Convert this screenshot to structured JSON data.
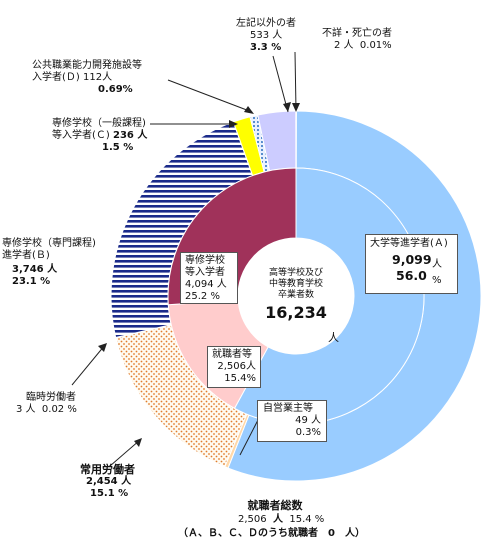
{
  "chart_data": {
    "type": "pie",
    "total_label": "高等学校及び中等教育学校卒業者数",
    "total_lines": [
      "高等学校及び",
      "中等教育学校",
      "卒業者数"
    ],
    "total_value": "16,234",
    "total_unit": "人",
    "outer": [
      {
        "label": "大学等進学者(Ａ)",
        "value": 9099,
        "percent": 56.0,
        "color": "#99ccff",
        "pattern": "solid"
      },
      {
        "label": "専修学校(専門課程)進学者(Ｂ)",
        "value": 3746,
        "percent": 23.1,
        "color": "#1a2a8a",
        "pattern": "hstripe"
      },
      {
        "label": "専修学校(一般課程)等入学者(Ｃ)",
        "value": 236,
        "percent": 1.5,
        "color": "#ffff00",
        "pattern": "solid"
      },
      {
        "label": "公共職業能力開発施設等入学者(Ｄ)",
        "value": 112,
        "percent": 0.69,
        "color": "#2a6fbf",
        "pattern": "dots"
      },
      {
        "label": "左記以外の者",
        "value": 533,
        "percent": 3.3,
        "color": "#ccccff",
        "pattern": "solid"
      },
      {
        "label": "不詳・死亡の者",
        "value": 2,
        "percent": 0.01,
        "color": "#ccccff",
        "pattern": "solid"
      },
      {
        "label": "臨時労働者",
        "value": 3,
        "percent": 0.02,
        "color": "#ffd8a8",
        "pattern": "solid"
      },
      {
        "label": "常用労働者",
        "value": 2454,
        "percent": 15.1,
        "color": "#e07a2a",
        "pattern": "dots"
      },
      {
        "label": "自営業主等",
        "value": 49,
        "percent": 0.3,
        "color": "#ffd8a8",
        "pattern": "solid"
      }
    ],
    "inner": [
      {
        "label": "専修学校等入学者",
        "value": 4094,
        "percent": 25.2,
        "color": "#a0325a"
      },
      {
        "label": "就職者等",
        "value": 2506,
        "percent": 15.4,
        "color": "#ffcccc"
      },
      {
        "label": "大学等進学者(Ａ)",
        "value": 9099,
        "percent": 56.0,
        "color": "#99ccff"
      }
    ]
  },
  "labels": {
    "a": {
      "line1": "大学等進学者(Ａ)",
      "value": "9,099",
      "unit": "人",
      "pct": "56.0",
      "pct_unit": "%"
    },
    "b": {
      "line1": "専修学校（専門課程)",
      "line2": "進学者(Ｂ)",
      "value": "3,746 人",
      "pct": "23.1 %"
    },
    "c": {
      "line1": "専修学校（一般課程)",
      "line2": "等入学者(Ｃ)",
      "value": "236 人",
      "pct": "1.5 %"
    },
    "d": {
      "line1": "公共職業能力開発施設等",
      "line2": "入学者(Ｄ)",
      "value": "112人",
      "pct": "0.69%"
    },
    "other": {
      "line1": "左記以外の者",
      "value": "533 人",
      "pct": "3.3 %"
    },
    "unknown": {
      "line1": "不詳・死亡の者",
      "value": "2 人",
      "pct": "0.01%"
    },
    "temp": {
      "line1": "臨時労働者",
      "value": "3 人",
      "pct": "0.02 %"
    },
    "regular": {
      "line1": "常用労働者",
      "value": "2,454 人",
      "pct": "15.1 %"
    },
    "self": {
      "line1": "自営業主等",
      "value": "49 人",
      "pct": "0.3%"
    },
    "inner_senshu": {
      "line1": "専修学校",
      "line2": "等入学者",
      "value": "4,094 人",
      "pct": "25.2 %"
    },
    "inner_shushoku": {
      "line1": "就職者等",
      "value": "2,506人",
      "pct": "15.4%"
    },
    "footer": {
      "title": "就職者総数",
      "line2a": "2,506",
      "line2b": "人",
      "line2c": "15.4 %",
      "line3": "（Ａ、Ｂ、Ｃ、Ｄのうち就職者　0　人）"
    }
  }
}
